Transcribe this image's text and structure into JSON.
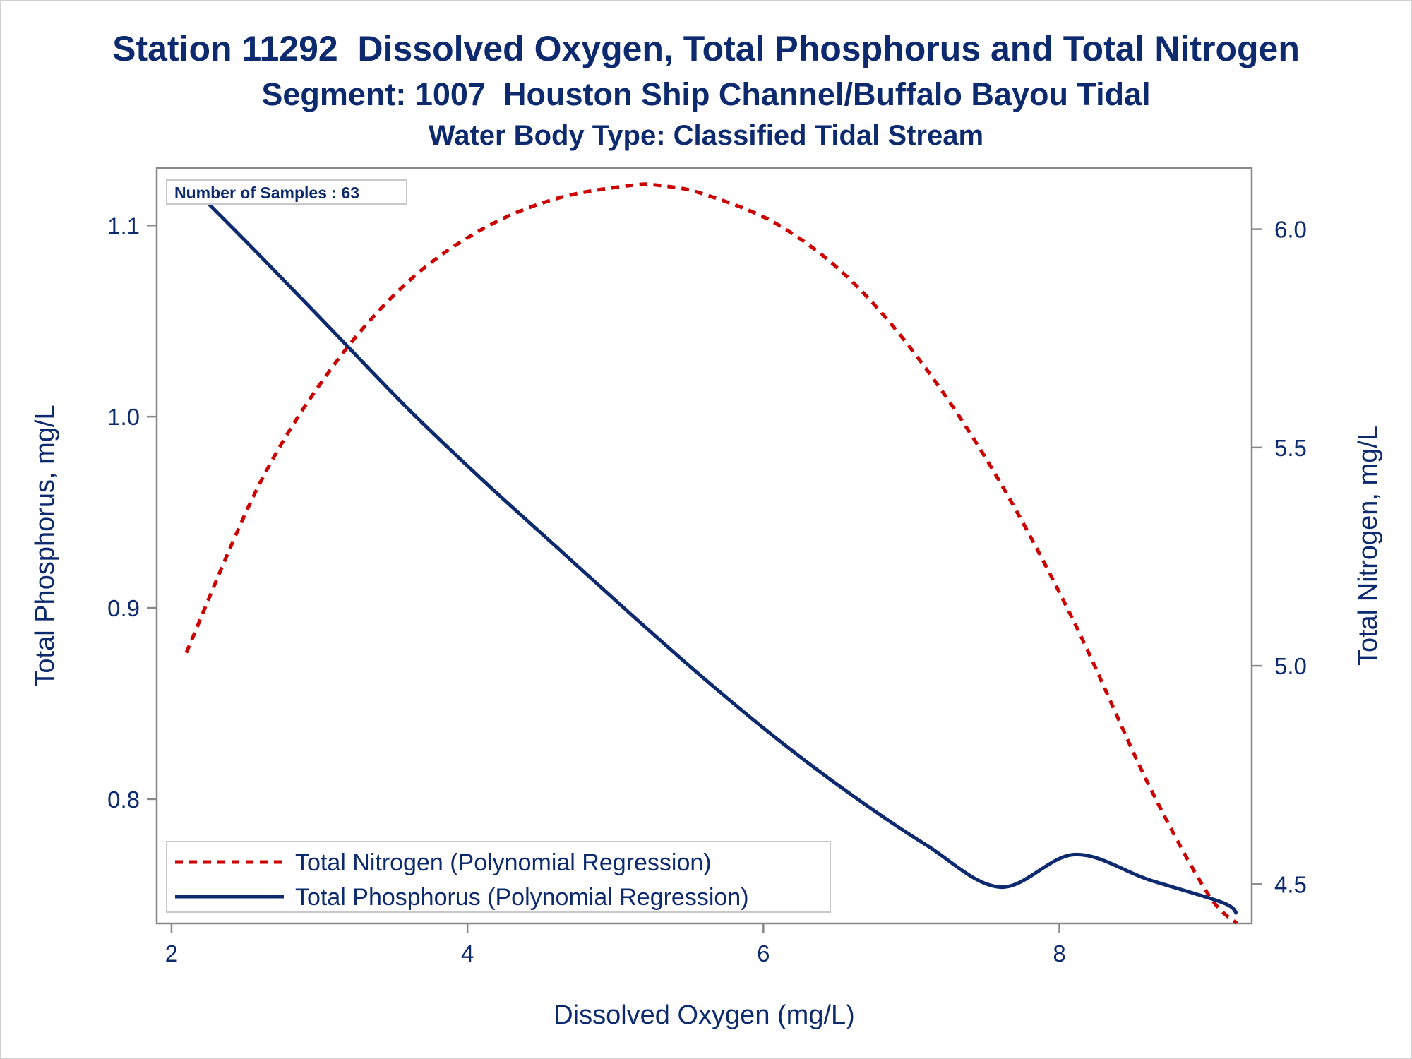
{
  "titles": {
    "line1": "Station 11292  Dissolved Oxygen, Total Phosphorus and Total Nitrogen",
    "line2": "Segment: 1007  Houston Ship Channel/Buffalo Bayou Tidal",
    "line3": "Water Body Type: Classified Tidal Stream"
  },
  "inset": {
    "text": "Number of Samples : 63"
  },
  "colors": {
    "nitrogen": "#cc0000",
    "phosphorus": "#0d2a6e",
    "text": "#0d2a6e",
    "axis": "#888888"
  },
  "chart_data": {
    "type": "line",
    "xlabel": "Dissolved Oxygen (mg/L)",
    "ylabel_left": "Total Phosphorus, mg/L",
    "ylabel_right": "Total Nitrogen, mg/L",
    "xlim": [
      1.9,
      9.3
    ],
    "ylim_left": [
      0.735,
      1.13
    ],
    "ylim_right": [
      4.41,
      6.14
    ],
    "x_ticks": [
      "2",
      "4",
      "6",
      "8"
    ],
    "y_left_ticks": [
      "0.8",
      "0.9",
      "1.0",
      "1.1"
    ],
    "y_right_ticks": [
      "4.5",
      "5.0",
      "5.5",
      "6.0"
    ],
    "grid": false,
    "legend_position": "bottom-left",
    "series": [
      {
        "name": "Total Nitrogen (Polynomial Regression)",
        "axis": "right",
        "style": "dashed",
        "x": [
          2.1,
          2.6,
          3.1,
          3.6,
          4.1,
          4.6,
          5.1,
          5.3,
          5.6,
          6.1,
          6.6,
          7.1,
          7.6,
          8.1,
          8.6,
          9.0,
          9.2
        ],
        "y": [
          5.03,
          5.42,
          5.69,
          5.88,
          6.0,
          6.07,
          6.1,
          6.1,
          6.08,
          6.01,
          5.88,
          5.68,
          5.42,
          5.1,
          4.73,
          4.48,
          4.41
        ]
      },
      {
        "name": "Total Phosphorus (Polynomial Regression)",
        "axis": "left",
        "style": "solid",
        "x": [
          2.1,
          2.6,
          3.1,
          3.6,
          4.1,
          4.6,
          5.1,
          5.6,
          6.1,
          6.6,
          7.1,
          7.6,
          8.1,
          8.6,
          9.1,
          9.2
        ],
        "y": [
          1.123,
          1.084,
          1.044,
          1.004,
          0.967,
          0.932,
          0.897,
          0.863,
          0.831,
          0.802,
          0.776,
          0.754,
          0.771,
          0.758,
          0.746,
          0.74
        ]
      }
    ]
  }
}
